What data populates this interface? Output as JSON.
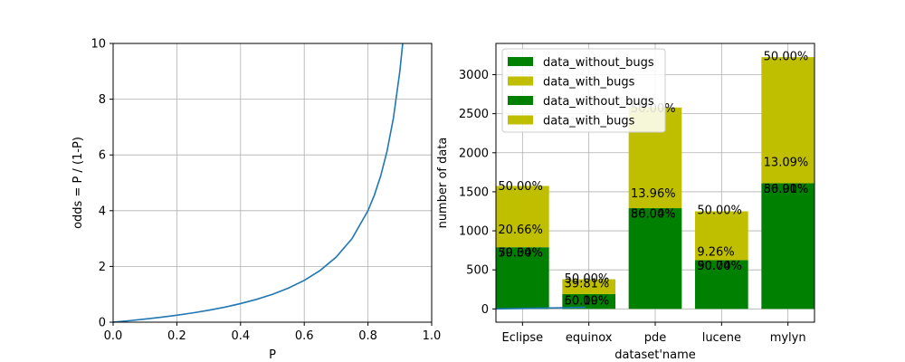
{
  "chart_data": [
    {
      "type": "line",
      "x": [
        0.0,
        0.05,
        0.1,
        0.15,
        0.2,
        0.25,
        0.3,
        0.35,
        0.4,
        0.45,
        0.5,
        0.55,
        0.6,
        0.65,
        0.7,
        0.75,
        0.8,
        0.82,
        0.84,
        0.86,
        0.88,
        0.9,
        0.909
      ],
      "series": [
        {
          "color": "#1f77b4",
          "values": [
            0.0,
            0.053,
            0.111,
            0.176,
            0.25,
            0.333,
            0.429,
            0.538,
            0.667,
            0.818,
            1.0,
            1.222,
            1.5,
            1.857,
            2.333,
            3.0,
            4.0,
            4.556,
            5.25,
            6.143,
            7.333,
            9.0,
            10.0
          ]
        }
      ],
      "xlabel": "P",
      "ylabel": "odds = P / (1-P)",
      "xlim": [
        0.0,
        1.0
      ],
      "ylim": [
        0,
        10
      ],
      "xticks": [
        "0.0",
        "0.2",
        "0.4",
        "0.6",
        "0.8",
        "1.0"
      ],
      "yticks": [
        "0",
        "2",
        "4",
        "6",
        "8",
        "10"
      ],
      "grid": true
    },
    {
      "type": "bar",
      "stacked": true,
      "categories": [
        "Eclipse",
        "equinox",
        "pde",
        "lucene",
        "mylyn"
      ],
      "series": [
        {
          "name": "data_without_bugs",
          "color": "#008000",
          "values": [
            790,
            190,
            1290,
            625,
            1610
          ]
        },
        {
          "name": "data_with_bugs",
          "color": "#bfbf00",
          "values": [
            785,
            190,
            1290,
            625,
            1615
          ]
        }
      ],
      "legend": {
        "position": "upper-left",
        "entries": [
          {
            "label": "data_without_bugs",
            "color": "#008000"
          },
          {
            "label": "data_with_bugs",
            "color": "#bfbf00"
          },
          {
            "label": "data_without_bugs",
            "color": "#008000"
          },
          {
            "label": "data_with_bugs",
            "color": "#bfbf00"
          }
        ]
      },
      "annotations": [
        {
          "text": "50.00%",
          "cat": 0,
          "y": 1575
        },
        {
          "text": "20.66%",
          "cat": 0,
          "y": 1020
        },
        {
          "text": "79.34%",
          "cat": 0,
          "y": 720
        },
        {
          "text": "50.00%",
          "cat": 0,
          "y": 720
        },
        {
          "text": "50.00%",
          "cat": 1,
          "y": 390
        },
        {
          "text": "39.81%",
          "cat": 1,
          "y": 330
        },
        {
          "text": "60.19%",
          "cat": 1,
          "y": 110
        },
        {
          "text": "50.00%",
          "cat": 1,
          "y": 110
        },
        {
          "text": "50.00%",
          "cat": 2,
          "y": 2570
        },
        {
          "text": "13.96%",
          "cat": 2,
          "y": 1480
        },
        {
          "text": "86.04%",
          "cat": 2,
          "y": 1220
        },
        {
          "text": "50.00%",
          "cat": 2,
          "y": 1220
        },
        {
          "text": "50.00%",
          "cat": 3,
          "y": 1270
        },
        {
          "text": "9.26%",
          "cat": 3,
          "y": 735
        },
        {
          "text": "90.74%",
          "cat": 3,
          "y": 555
        },
        {
          "text": "50.00%",
          "cat": 3,
          "y": 555
        },
        {
          "text": "50.00%",
          "cat": 4,
          "y": 3240
        },
        {
          "text": "13.09%",
          "cat": 4,
          "y": 1880
        },
        {
          "text": "86.91%",
          "cat": 4,
          "y": 1540
        },
        {
          "text": "50.00%",
          "cat": 4,
          "y": 1540
        }
      ],
      "extra_line": {
        "color": "#1f77b4",
        "x": [
          0.0,
          1.0
        ],
        "y": [
          0,
          20
        ]
      },
      "xlabel": "dataset'name",
      "ylabel": "number of data",
      "ylim": [
        -170,
        3400
      ],
      "yticks": [
        0,
        500,
        1000,
        1500,
        2000,
        2500,
        3000
      ],
      "grid": true
    }
  ]
}
